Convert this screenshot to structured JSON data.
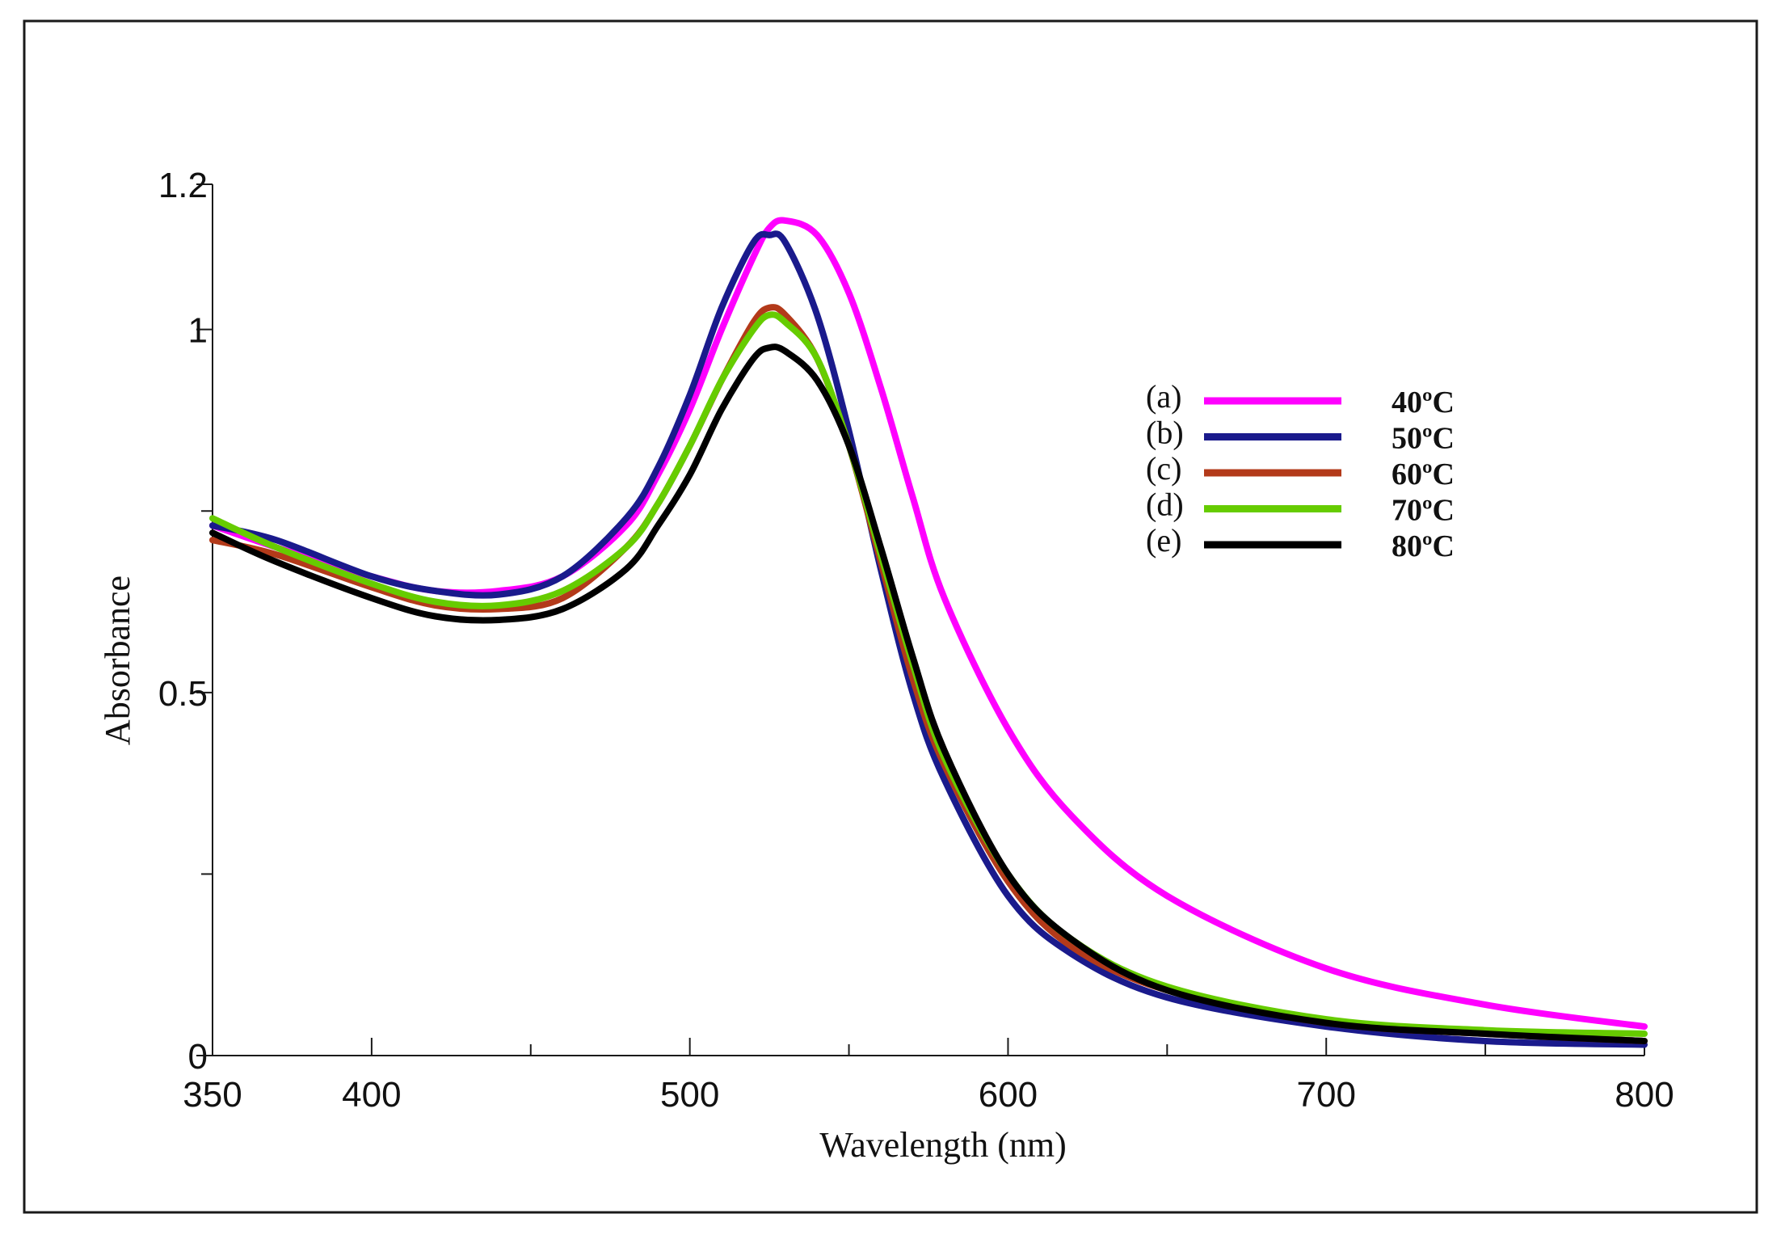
{
  "chart_data": {
    "type": "line",
    "title": "",
    "xlabel": "Wavelength (nm)",
    "ylabel": "Absorbance",
    "xlim": [
      350,
      800
    ],
    "ylim": [
      0,
      1.2
    ],
    "x_ticks_major": [
      350,
      400,
      500,
      600,
      700,
      800
    ],
    "x_ticks_minor": [
      450,
      550,
      650,
      750
    ],
    "y_ticks_major": [
      0,
      0.5,
      1,
      1.2
    ],
    "y_ticks_minor": [
      0.25,
      0.75
    ],
    "x_tick_labels": [
      "350",
      "400",
      "500",
      "600",
      "700",
      "800"
    ],
    "y_tick_labels": [
      "0",
      "0.5",
      "1",
      "1.2"
    ],
    "legend_position": "right",
    "x": [
      350,
      370,
      400,
      420,
      440,
      460,
      480,
      490,
      500,
      510,
      520,
      525,
      530,
      540,
      550,
      560,
      570,
      580,
      600,
      620,
      650,
      700,
      750,
      800
    ],
    "series": [
      {
        "name": "40ºC",
        "letter": "(a)",
        "color": "#ff00ff",
        "values": [
          0.73,
          0.7,
          0.66,
          0.64,
          0.64,
          0.66,
          0.73,
          0.8,
          0.89,
          1.0,
          1.1,
          1.14,
          1.15,
          1.13,
          1.05,
          0.92,
          0.77,
          0.63,
          0.45,
          0.33,
          0.22,
          0.12,
          0.07,
          0.04
        ]
      },
      {
        "name": "50ºC",
        "letter": "(b)",
        "color": "#1a1a8c",
        "values": [
          0.73,
          0.71,
          0.66,
          0.64,
          0.635,
          0.66,
          0.74,
          0.81,
          0.91,
          1.03,
          1.12,
          1.13,
          1.12,
          1.02,
          0.86,
          0.67,
          0.5,
          0.38,
          0.22,
          0.14,
          0.08,
          0.04,
          0.02,
          0.015
        ]
      },
      {
        "name": "60ºC",
        "letter": "(c)",
        "color": "#b33a1a",
        "values": [
          0.71,
          0.69,
          0.645,
          0.62,
          0.615,
          0.63,
          0.7,
          0.76,
          0.84,
          0.93,
          1.01,
          1.03,
          1.02,
          0.96,
          0.84,
          0.68,
          0.52,
          0.4,
          0.24,
          0.15,
          0.09,
          0.045,
          0.03,
          0.02
        ]
      },
      {
        "name": "70ºC",
        "letter": "(d)",
        "color": "#66cc00",
        "values": [
          0.74,
          0.7,
          0.65,
          0.625,
          0.62,
          0.64,
          0.7,
          0.76,
          0.84,
          0.93,
          1.0,
          1.02,
          1.01,
          0.96,
          0.84,
          0.69,
          0.54,
          0.41,
          0.25,
          0.16,
          0.095,
          0.05,
          0.035,
          0.03
        ]
      },
      {
        "name": "80ºC",
        "letter": "(e)",
        "color": "#000000",
        "values": [
          0.72,
          0.68,
          0.63,
          0.605,
          0.6,
          0.615,
          0.67,
          0.73,
          0.8,
          0.89,
          0.96,
          0.975,
          0.97,
          0.93,
          0.84,
          0.7,
          0.55,
          0.42,
          0.25,
          0.16,
          0.09,
          0.045,
          0.03,
          0.02
        ]
      }
    ]
  }
}
